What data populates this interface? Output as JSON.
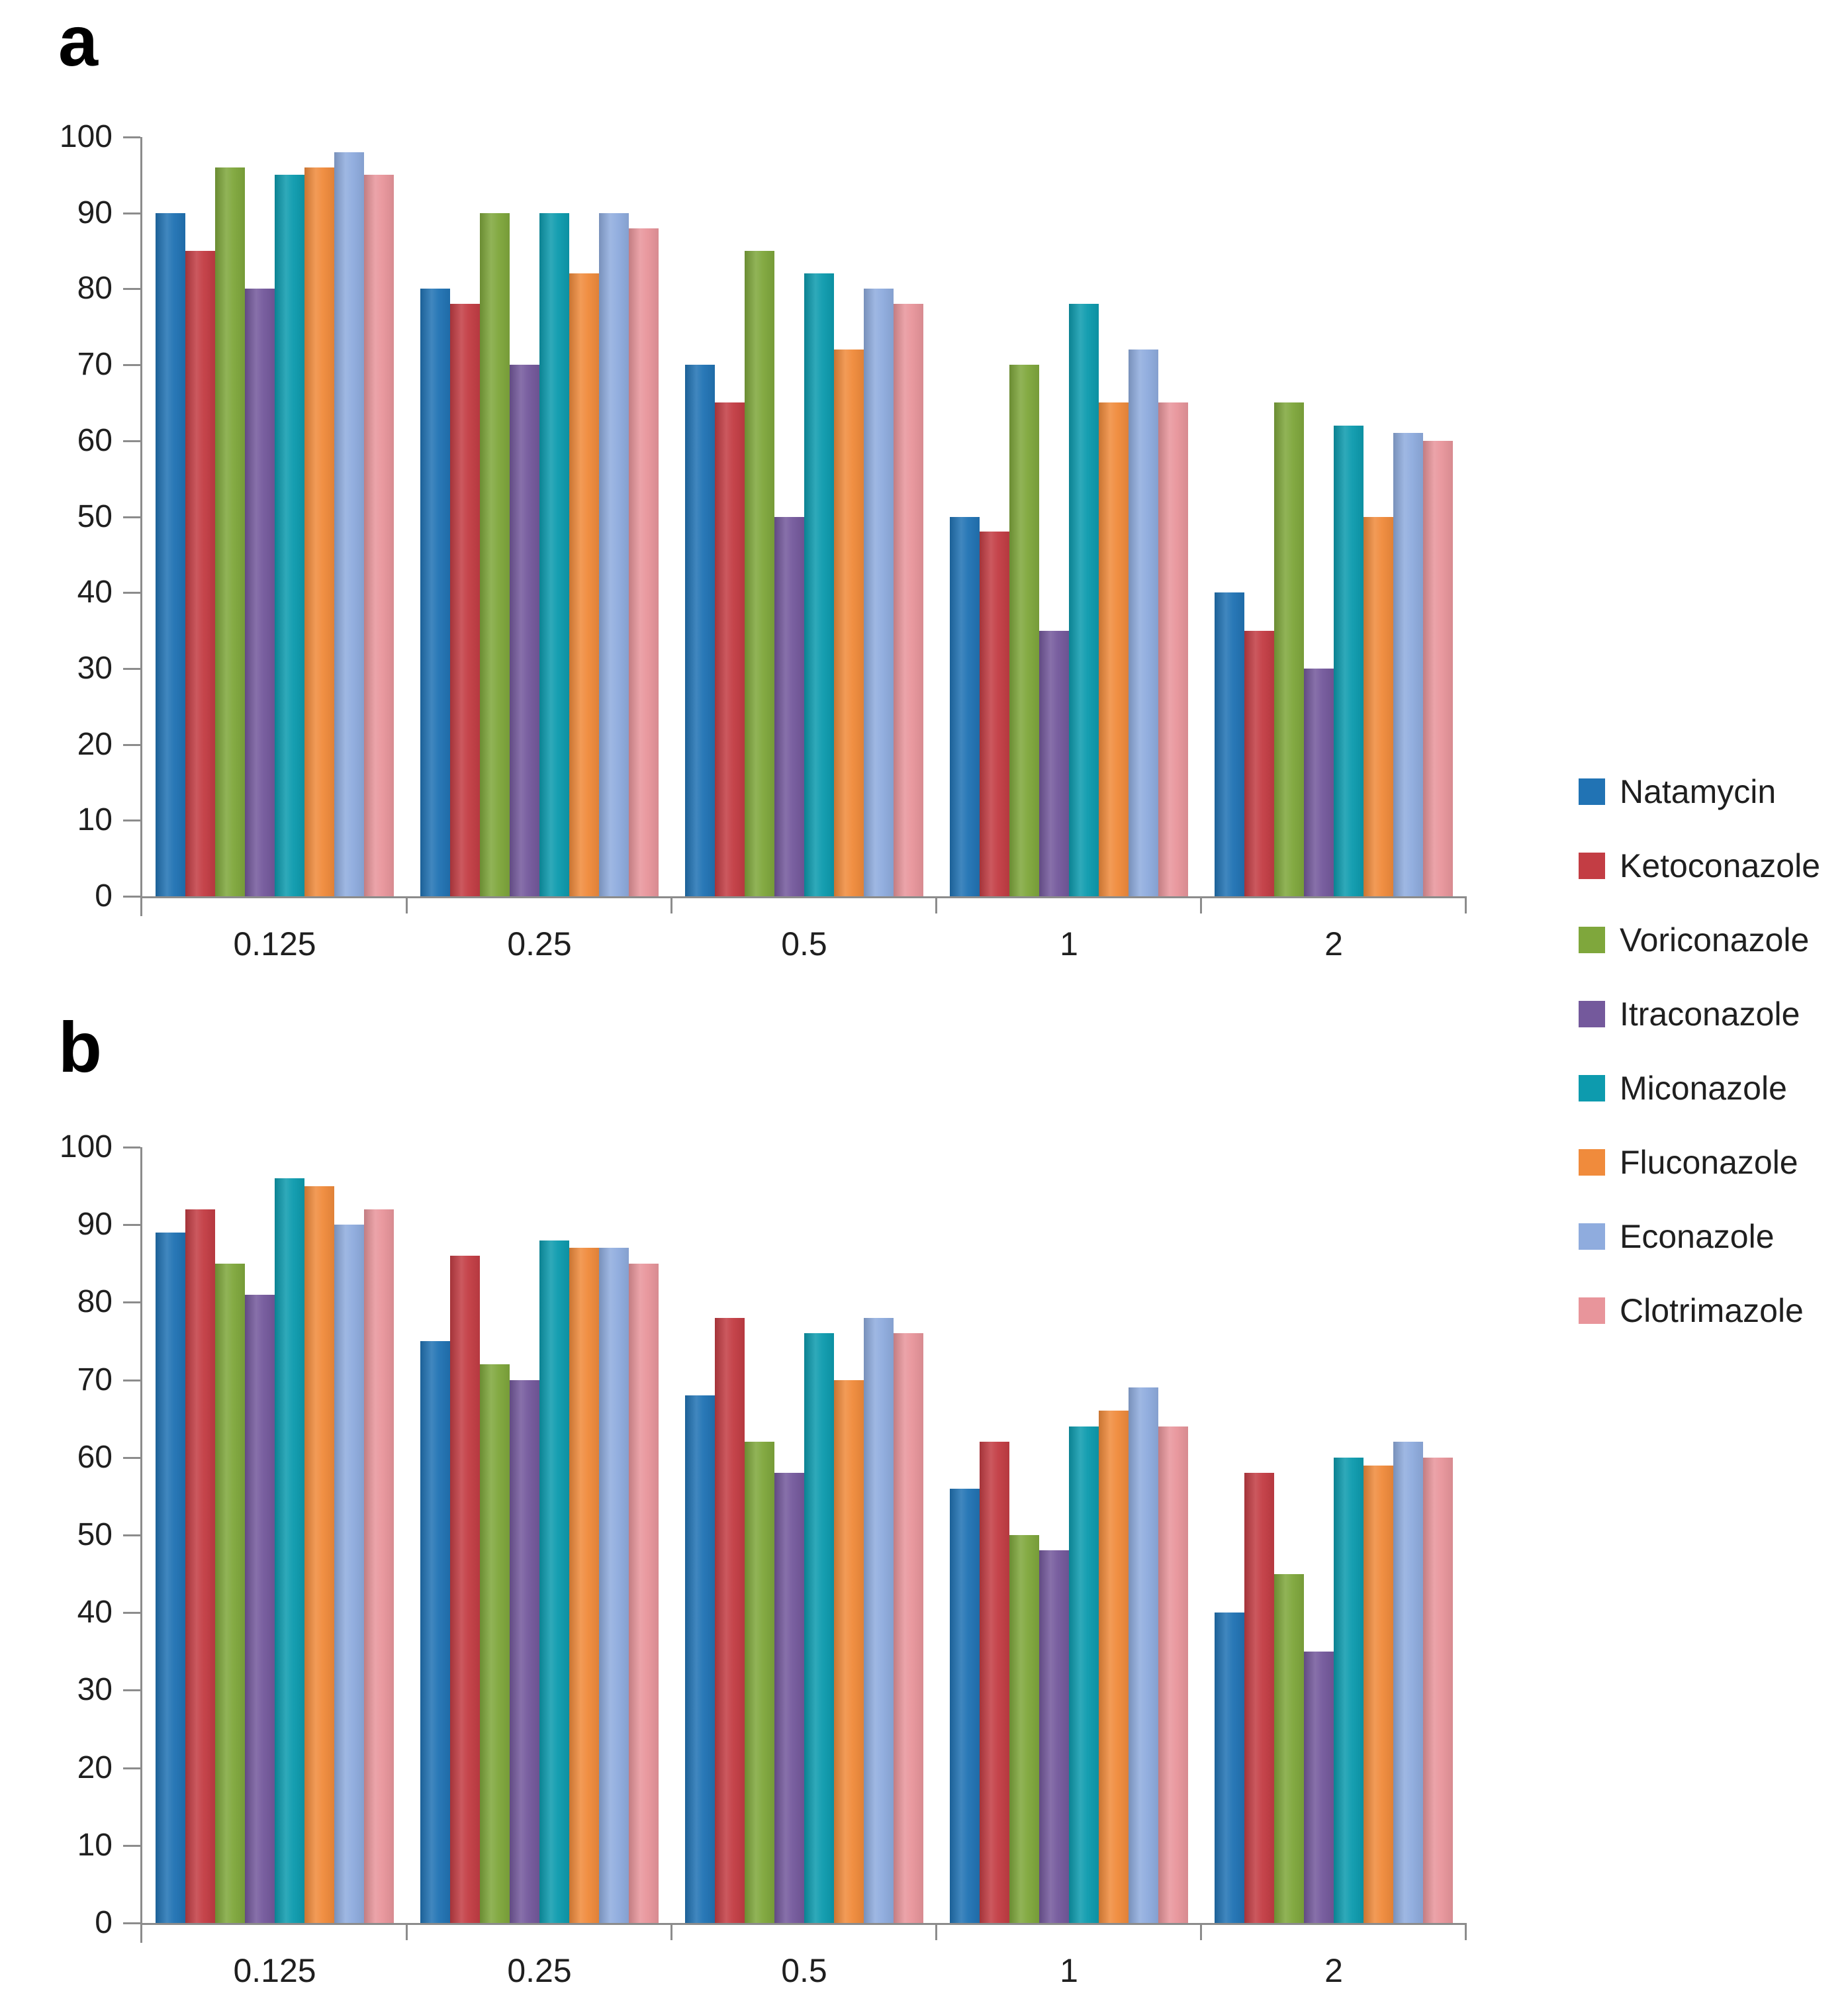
{
  "panel_a": {
    "label": "a"
  },
  "panel_b": {
    "label": "b"
  },
  "axis_color": "#8c8c8c",
  "legend": {
    "position": "right",
    "items": [
      {
        "label": "Natamycin",
        "color": "#2173b4"
      },
      {
        "label": "Ketoconazole",
        "color": "#c33d44"
      },
      {
        "label": "Voriconazole",
        "color": "#7fa73c"
      },
      {
        "label": "Itraconazole",
        "color": "#74599c"
      },
      {
        "label": "Miconazole",
        "color": "#0d9bae"
      },
      {
        "label": "Fluconazole",
        "color": "#f08b3c"
      },
      {
        "label": "Econazole",
        "color": "#8facde"
      },
      {
        "label": "Clotrimazole",
        "color": "#e8959b"
      }
    ]
  },
  "chart_data": [
    {
      "id": "a",
      "type": "bar",
      "title": "",
      "xlabel": "",
      "ylabel": "",
      "grid": false,
      "legend_position": "right",
      "ylim": [
        0,
        100
      ],
      "y_ticks": [
        100,
        90,
        80,
        70,
        60,
        50,
        40,
        30,
        20,
        10,
        0
      ],
      "categories": [
        "0.125",
        "0.25",
        "0.5",
        "1",
        "2"
      ],
      "series": [
        {
          "name": "Natamycin",
          "color": "#2173b4",
          "values": [
            90,
            80,
            70,
            50,
            40
          ]
        },
        {
          "name": "Ketoconazole",
          "color": "#c33d44",
          "values": [
            85,
            78,
            65,
            48,
            35
          ]
        },
        {
          "name": "Voriconazole",
          "color": "#7fa73c",
          "values": [
            96,
            90,
            85,
            70,
            65
          ]
        },
        {
          "name": "Itraconazole",
          "color": "#74599c",
          "values": [
            80,
            70,
            50,
            35,
            30
          ]
        },
        {
          "name": "Miconazole",
          "color": "#0d9bae",
          "values": [
            95,
            90,
            82,
            78,
            62
          ]
        },
        {
          "name": "Fluconazole",
          "color": "#f08b3c",
          "values": [
            96,
            82,
            72,
            65,
            50
          ]
        },
        {
          "name": "Econazole",
          "color": "#8facde",
          "values": [
            98,
            90,
            80,
            72,
            61
          ]
        },
        {
          "name": "Clotrimazole",
          "color": "#e8959b",
          "values": [
            95,
            88,
            78,
            65,
            60
          ]
        }
      ]
    },
    {
      "id": "b",
      "type": "bar",
      "title": "",
      "xlabel": "",
      "ylabel": "",
      "grid": false,
      "legend_position": "right",
      "ylim": [
        0,
        100
      ],
      "y_ticks": [
        100,
        90,
        80,
        70,
        60,
        50,
        40,
        30,
        20,
        10,
        0
      ],
      "categories": [
        "0.125",
        "0.25",
        "0.5",
        "1",
        "2"
      ],
      "series": [
        {
          "name": "Natamycin",
          "color": "#2173b4",
          "values": [
            89,
            75,
            68,
            56,
            40
          ]
        },
        {
          "name": "Ketoconazole",
          "color": "#c33d44",
          "values": [
            92,
            86,
            78,
            62,
            58
          ]
        },
        {
          "name": "Voriconazole",
          "color": "#7fa73c",
          "values": [
            85,
            72,
            62,
            50,
            45
          ]
        },
        {
          "name": "Itraconazole",
          "color": "#74599c",
          "values": [
            81,
            70,
            58,
            48,
            35
          ]
        },
        {
          "name": "Miconazole",
          "color": "#0d9bae",
          "values": [
            96,
            88,
            76,
            64,
            60
          ]
        },
        {
          "name": "Fluconazole",
          "color": "#f08b3c",
          "values": [
            95,
            87,
            70,
            66,
            59
          ]
        },
        {
          "name": "Econazole",
          "color": "#8facde",
          "values": [
            90,
            87,
            78,
            69,
            62
          ]
        },
        {
          "name": "Clotrimazole",
          "color": "#e8959b",
          "values": [
            92,
            85,
            76,
            64,
            60
          ]
        }
      ]
    }
  ]
}
